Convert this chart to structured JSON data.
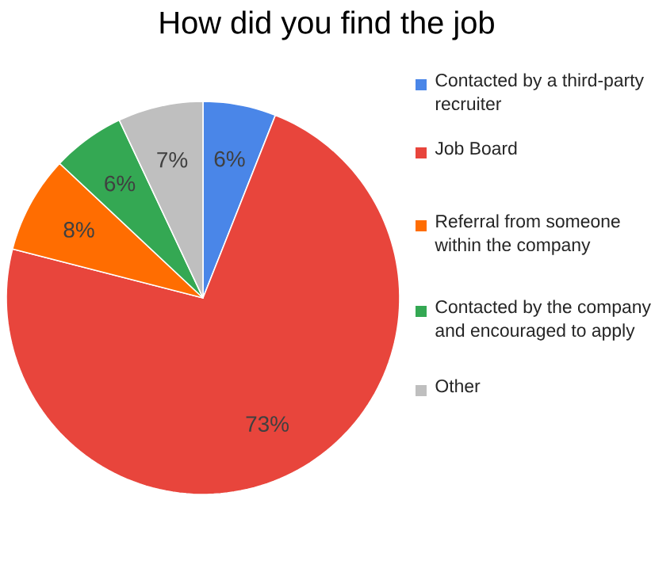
{
  "chart_data": {
    "type": "pie",
    "title": "How did you find the job",
    "categories": [
      "Contacted by a third-party recruiter",
      "Job Board",
      "Referral from someone within the company",
      "Contacted by the company and encouraged to apply",
      "Other"
    ],
    "values": [
      6,
      73,
      8,
      6,
      7
    ],
    "value_labels": [
      "6%",
      "73%",
      "8%",
      "6%",
      "7%"
    ],
    "colors": [
      "#4a86e8",
      "#e8453c",
      "#ff6d01",
      "#34a853",
      "#bfbfbf"
    ],
    "legend": "right"
  }
}
